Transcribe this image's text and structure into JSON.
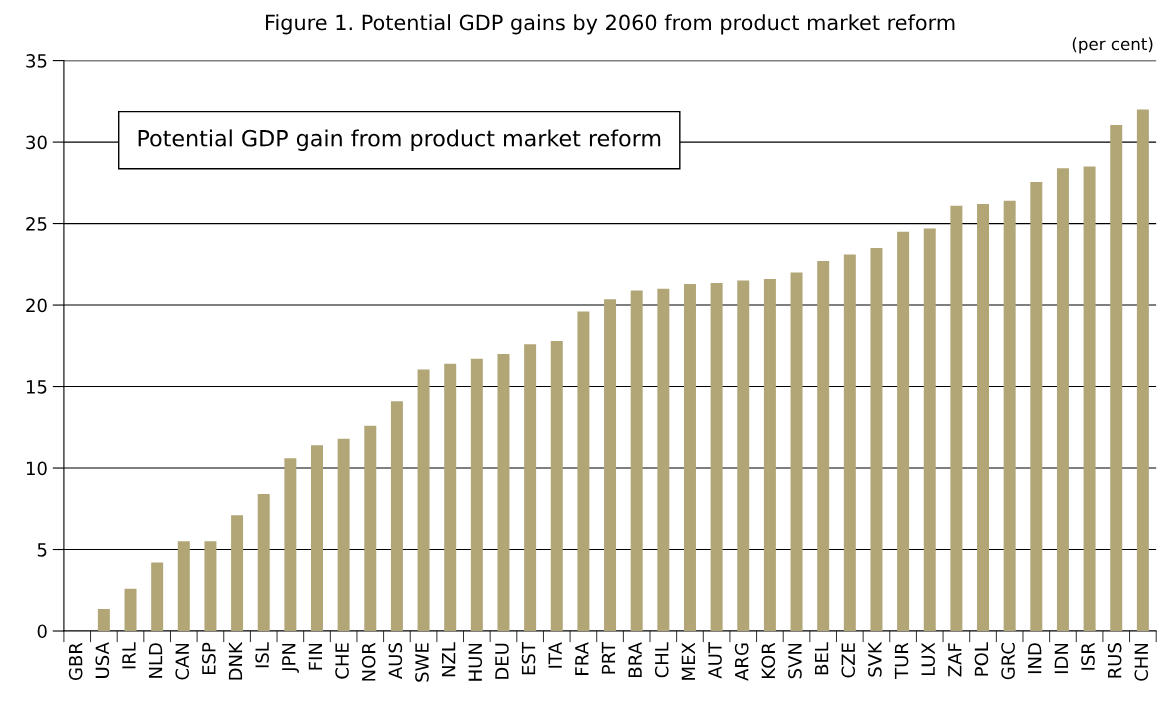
{
  "chart_data": {
    "type": "bar",
    "title": "Figure 1. Potential GDP gains by 2060 from product market reform",
    "annotations": [
      "(per cent)"
    ],
    "categories": [
      "GBR",
      "USA",
      "IRL",
      "NLD",
      "CAN",
      "ESP",
      "DNK",
      "ISL",
      "JPN",
      "FIN",
      "CHE",
      "NOR",
      "AUS",
      "SWE",
      "NZL",
      "HUN",
      "DEU",
      "EST",
      "ITA",
      "FRA",
      "PRT",
      "BRA",
      "CHL",
      "MEX",
      "AUT",
      "ARG",
      "KOR",
      "SVN",
      "BEL",
      "CZE",
      "SVK",
      "TUR",
      "LUX",
      "ZAF",
      "POL",
      "GRC",
      "IND",
      "IDN",
      "ISR",
      "RUS",
      "CHN"
    ],
    "series": [
      {
        "name": "Potential GDP gain from product market reform",
        "color": "#b2a677",
        "values": [
          0,
          1.35,
          2.6,
          4.2,
          5.5,
          5.5,
          7.1,
          8.4,
          10.6,
          11.4,
          11.8,
          12.6,
          14.1,
          16.05,
          16.4,
          16.7,
          17.0,
          17.6,
          17.8,
          19.6,
          20.35,
          20.9,
          21.0,
          21.3,
          21.35,
          21.5,
          21.6,
          22.0,
          22.7,
          23.1,
          23.5,
          24.5,
          24.7,
          26.1,
          26.2,
          26.4,
          27.55,
          28.4,
          28.5,
          31.05,
          32.0
        ]
      }
    ],
    "ylim": [
      0,
      35
    ],
    "yticks": [
      0,
      5,
      10,
      15,
      20,
      25,
      30,
      35
    ],
    "grid": "y",
    "legend": "top left"
  }
}
